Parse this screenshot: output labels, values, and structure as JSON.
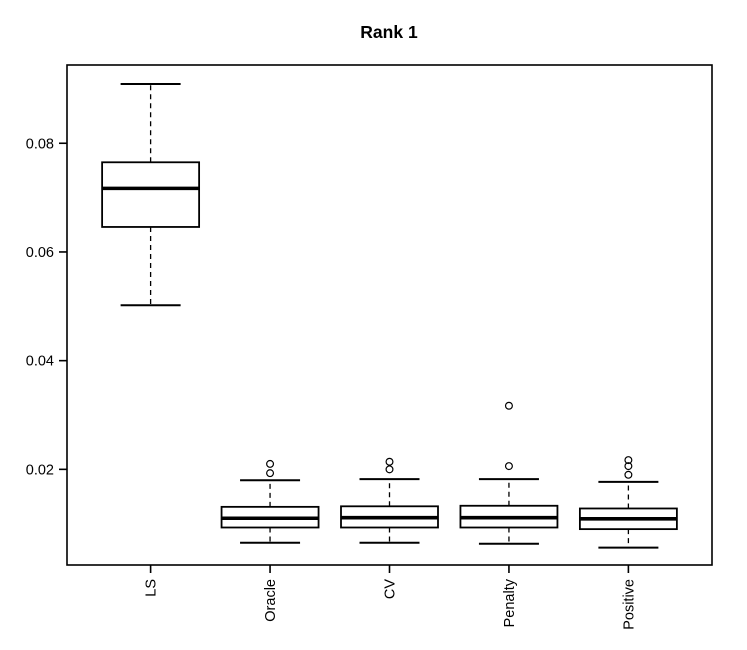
{
  "chart_data": {
    "type": "boxplot",
    "title": "Rank 1",
    "xlabel": "",
    "ylabel": "",
    "categories": [
      "LS",
      "Oracle",
      "CV",
      "Penalty",
      "Positive"
    ],
    "series": [
      {
        "name": "LS",
        "whisker_low": 0.0502,
        "q1": 0.0646,
        "median": 0.0717,
        "q3": 0.0765,
        "whisker_high": 0.0909,
        "outliers": []
      },
      {
        "name": "Oracle",
        "whisker_low": 0.0065,
        "q1": 0.0093,
        "median": 0.011,
        "q3": 0.0131,
        "whisker_high": 0.018,
        "outliers": [
          0.0193,
          0.021
        ]
      },
      {
        "name": "CV",
        "whisker_low": 0.0065,
        "q1": 0.0093,
        "median": 0.0111,
        "q3": 0.0132,
        "whisker_high": 0.0182,
        "outliers": [
          0.02,
          0.0214
        ]
      },
      {
        "name": "Penalty",
        "whisker_low": 0.0063,
        "q1": 0.0093,
        "median": 0.0111,
        "q3": 0.0133,
        "whisker_high": 0.0182,
        "outliers": [
          0.0206,
          0.0317
        ]
      },
      {
        "name": "Positive",
        "whisker_low": 0.0056,
        "q1": 0.009,
        "median": 0.0109,
        "q3": 0.0128,
        "whisker_high": 0.0177,
        "outliers": [
          0.019,
          0.0206,
          0.0217
        ]
      }
    ],
    "yticks": [
      0.02,
      0.04,
      0.06,
      0.08
    ],
    "ytick_labels": [
      "0.02",
      "0.04",
      "0.06",
      "0.08"
    ],
    "ylim": [
      0.0024,
      0.0944
    ],
    "grid": "off",
    "legend": "none",
    "x_label_rotation": 90,
    "styles": {
      "line_color": "#000000",
      "box_fill": "#ffffff",
      "background": "#ffffff"
    }
  }
}
